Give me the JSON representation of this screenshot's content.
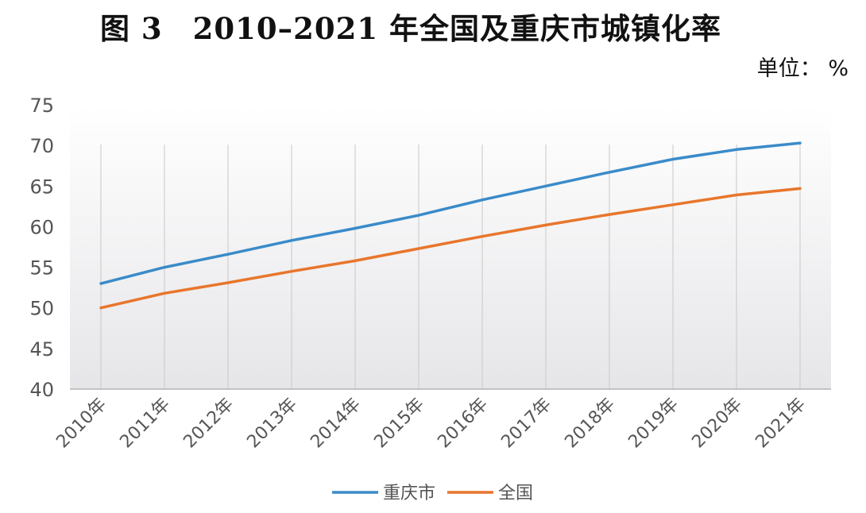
{
  "title": "图 3　2010–2021 年全国及重庆市城镇化率",
  "unit_label": "单位：  %",
  "chart_data": {
    "type": "line",
    "title": "图 3　2010–2021 年全国及重庆市城镇化率",
    "unit": "%",
    "categories": [
      "2010年",
      "2011年",
      "2012年",
      "2013年",
      "2014年",
      "2015年",
      "2016年",
      "2017年",
      "2018年",
      "2019年",
      "2020年",
      "2021年"
    ],
    "series": [
      {
        "name": "重庆市",
        "color": "#3A8BC9",
        "values": [
          53.0,
          55.0,
          56.6,
          58.3,
          59.8,
          61.4,
          63.3,
          65.0,
          66.7,
          68.3,
          69.5,
          70.3
        ]
      },
      {
        "name": "全国",
        "color": "#E8762C",
        "values": [
          50.0,
          51.8,
          53.1,
          54.5,
          55.8,
          57.3,
          58.8,
          60.2,
          61.5,
          62.7,
          63.9,
          64.7
        ]
      }
    ],
    "ylim": [
      40,
      75
    ],
    "yticks": [
      "40",
      "45",
      "50",
      "55",
      "60",
      "65",
      "70",
      "75"
    ],
    "grid": "vertical",
    "legend": "bottom-center"
  }
}
